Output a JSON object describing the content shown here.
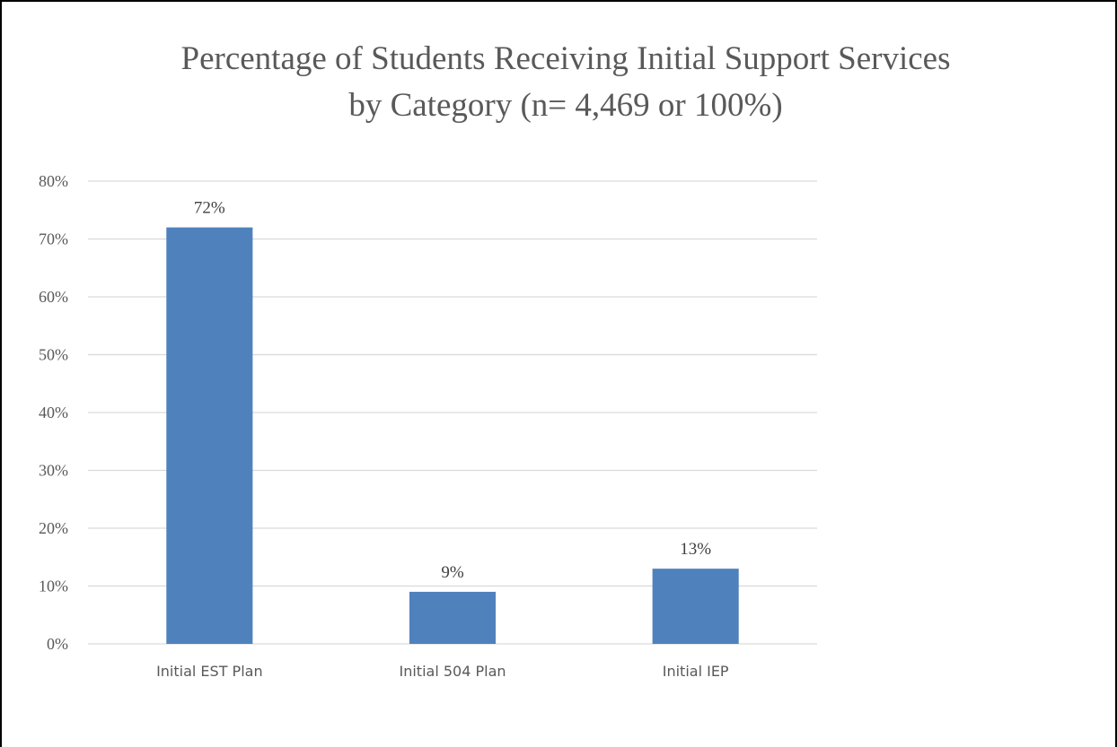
{
  "chart_data": {
    "type": "bar",
    "title": [
      "Percentage of Students Receiving Initial Support Services",
      "by Category (n= 4,469 or 100%)"
    ],
    "categories": [
      "Initial EST Plan",
      "Initial 504 Plan",
      "Initial IEP"
    ],
    "values": [
      72,
      9,
      13
    ],
    "data_labels": [
      "72%",
      "9%",
      "13%"
    ],
    "ylim": [
      0,
      80
    ],
    "y_ticks": [
      0,
      10,
      20,
      30,
      40,
      50,
      60,
      70,
      80
    ],
    "y_tick_labels": [
      "0%",
      "10%",
      "20%",
      "30%",
      "40%",
      "50%",
      "60%",
      "70%",
      "80%"
    ],
    "xlabel": "",
    "ylabel": "",
    "grid": true,
    "legend": "none",
    "bar_color": "#4f81bd",
    "grid_color": "#d9d9d9",
    "text_color": "#595959"
  }
}
